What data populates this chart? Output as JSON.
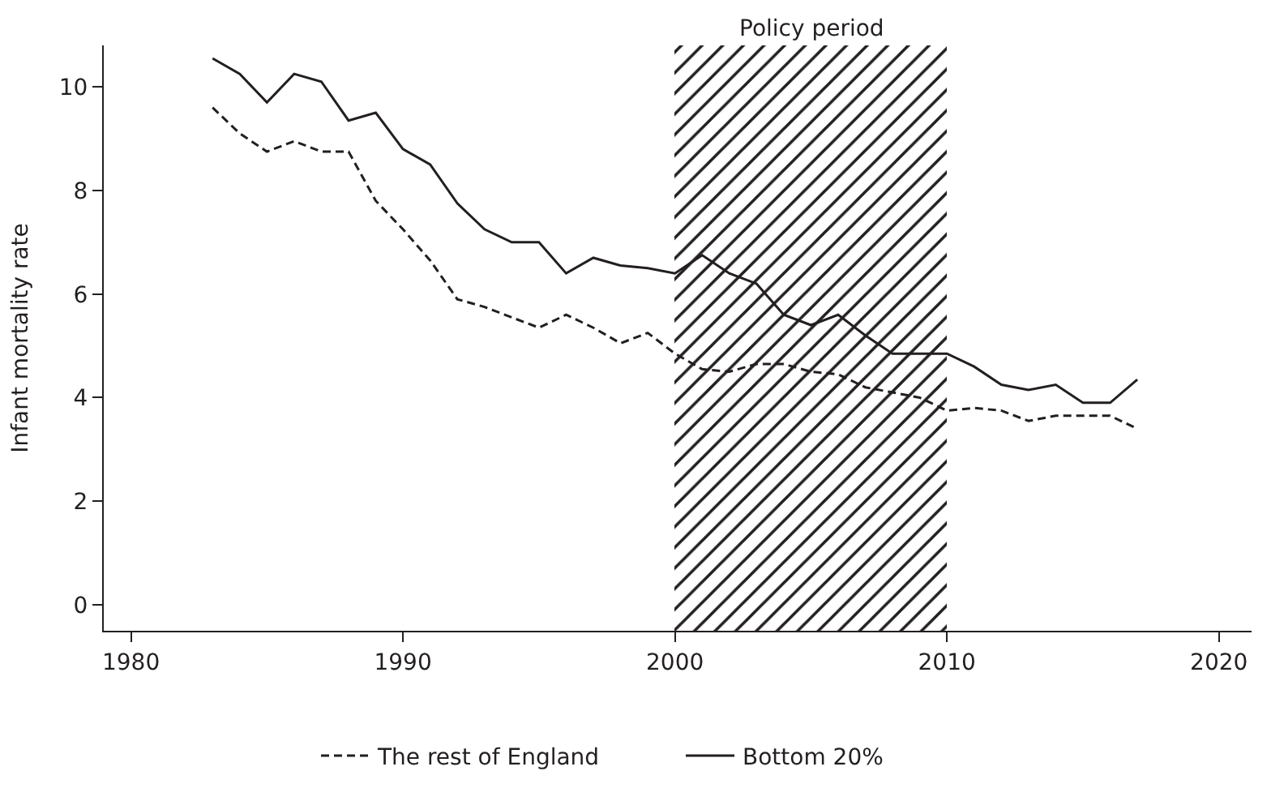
{
  "chart_data": {
    "type": "line",
    "ylabel": "Infant mortality rate",
    "x": [
      1983,
      1984,
      1985,
      1986,
      1987,
      1988,
      1989,
      1990,
      1991,
      1992,
      1993,
      1994,
      1995,
      1996,
      1997,
      1998,
      1999,
      2000,
      2001,
      2002,
      2003,
      2004,
      2005,
      2006,
      2007,
      2008,
      2009,
      2010,
      2011,
      2012,
      2013,
      2014,
      2015,
      2016,
      2017
    ],
    "series": [
      {
        "name": "The rest of England",
        "color": "#231f20",
        "line_style": "dashed",
        "values": [
          9.6,
          9.1,
          8.75,
          8.95,
          8.75,
          8.75,
          7.8,
          7.25,
          6.65,
          5.9,
          5.75,
          5.55,
          5.35,
          5.6,
          5.35,
          5.05,
          5.25,
          4.85,
          4.55,
          4.5,
          4.65,
          4.65,
          4.5,
          4.45,
          4.2,
          4.1,
          4.0,
          3.75,
          3.8,
          3.75,
          3.55,
          3.65,
          3.65,
          3.65,
          3.4
        ]
      },
      {
        "name": "Bottom 20%",
        "color": "#231f20",
        "line_style": "solid",
        "values": [
          10.55,
          10.25,
          9.7,
          10.25,
          10.1,
          9.35,
          9.5,
          8.8,
          8.5,
          7.75,
          7.25,
          7.0,
          7.0,
          6.4,
          6.7,
          6.55,
          6.5,
          6.4,
          6.75,
          6.4,
          6.2,
          5.6,
          5.4,
          5.6,
          5.2,
          4.85,
          4.85,
          4.85,
          4.6,
          4.25,
          4.15,
          4.25,
          3.9,
          3.9,
          4.35
        ]
      }
    ],
    "bands": [
      {
        "axis": "x",
        "from": 2000,
        "to": 2010,
        "label": "Policy period",
        "color": "#231f20"
      }
    ],
    "xlim": [
      1979,
      2021.2
    ],
    "xticks": [
      1980,
      1990,
      2000,
      2010,
      2020
    ],
    "ylim": [
      -0.5,
      10.8
    ],
    "yticks": [
      0,
      2,
      4,
      6,
      8,
      10
    ],
    "legend": "bottom",
    "marker": "none"
  }
}
